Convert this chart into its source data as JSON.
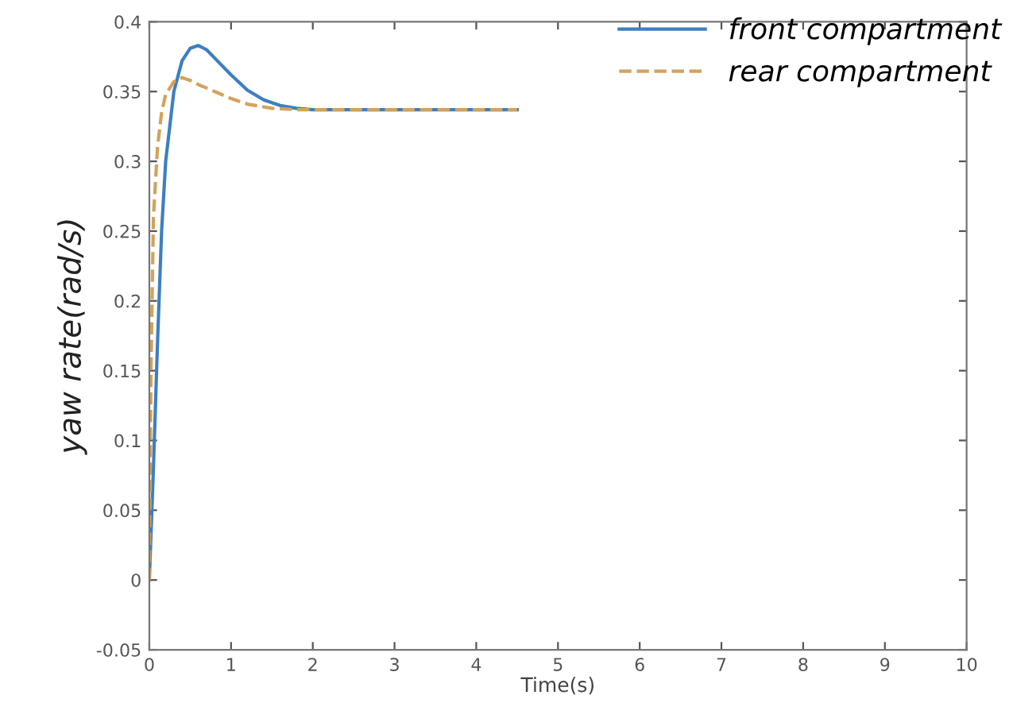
{
  "chart_data": {
    "type": "line",
    "xlabel": "Time(s)",
    "ylabel": "yaw rate(rad/s)",
    "xlim": [
      0,
      10
    ],
    "ylim": [
      -0.05,
      0.4
    ],
    "xticks": [
      0,
      1,
      2,
      3,
      4,
      5,
      6,
      7,
      8,
      9,
      10
    ],
    "yticks": [
      -0.05,
      0,
      0.05,
      0.1,
      0.15,
      0.2,
      0.25,
      0.3,
      0.35,
      0.4
    ],
    "grid": false,
    "legend": "top right",
    "series": [
      {
        "name": "front compartment",
        "color": "#3d7fc1",
        "line_style": "solid",
        "x": [
          0,
          0.05,
          0.1,
          0.15,
          0.2,
          0.3,
          0.4,
          0.5,
          0.6,
          0.7,
          0.8,
          1.0,
          1.2,
          1.4,
          1.6,
          1.8,
          2.0,
          3.0,
          4.5
        ],
        "values": [
          0,
          0.08,
          0.17,
          0.25,
          0.3,
          0.35,
          0.372,
          0.381,
          0.383,
          0.38,
          0.374,
          0.362,
          0.351,
          0.344,
          0.34,
          0.338,
          0.337,
          0.337,
          0.337
        ]
      },
      {
        "name": "rear compartment",
        "color": "#d4a25a",
        "line_style": "dashed",
        "x": [
          0,
          0.02,
          0.05,
          0.1,
          0.15,
          0.2,
          0.3,
          0.4,
          0.5,
          0.6,
          0.8,
          1.0,
          1.2,
          1.5,
          1.8,
          2.0,
          3.0,
          4.5
        ],
        "values": [
          0,
          0.15,
          0.26,
          0.31,
          0.335,
          0.348,
          0.357,
          0.36,
          0.358,
          0.355,
          0.35,
          0.345,
          0.341,
          0.338,
          0.337,
          0.337,
          0.337,
          0.337
        ]
      }
    ]
  }
}
